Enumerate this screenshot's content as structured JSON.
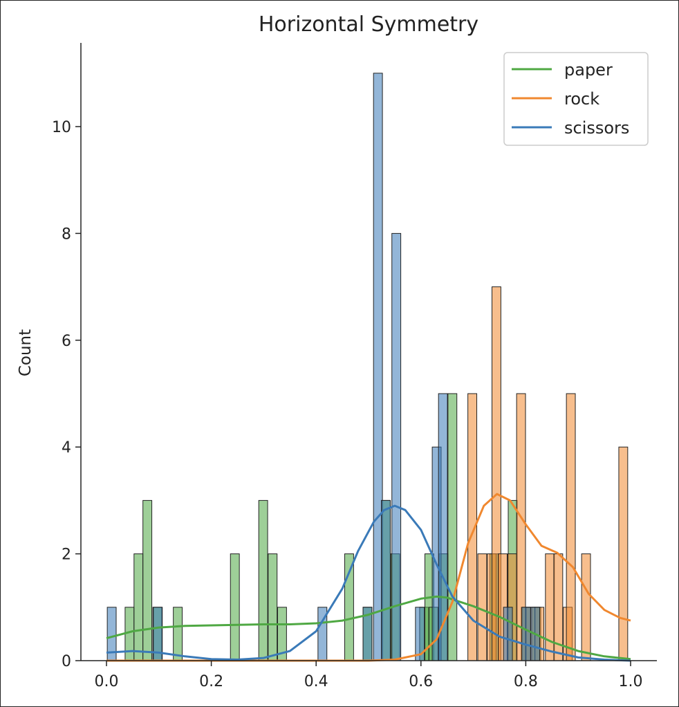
{
  "chart_data": {
    "type": "histogram",
    "title": "Horizontal Symmetry",
    "xlabel": "",
    "ylabel": "Count",
    "xlim": [
      -0.05,
      1.05
    ],
    "ylim": [
      0,
      11.5
    ],
    "xticks": [
      "0.0",
      "0.2",
      "0.4",
      "0.6",
      "0.8",
      "1.0"
    ],
    "yticks": [
      "0",
      "2",
      "4",
      "6",
      "8",
      "10"
    ],
    "bin_width": 0.017,
    "legend": {
      "position": "upper right",
      "entries": [
        "paper",
        "rock",
        "scissors"
      ]
    },
    "series": [
      {
        "name": "paper",
        "color": "#4fa843",
        "bars": [
          {
            "x": 0.044,
            "count": 1
          },
          {
            "x": 0.061,
            "count": 2
          },
          {
            "x": 0.078,
            "count": 3
          },
          {
            "x": 0.097,
            "count": 1
          },
          {
            "x": 0.136,
            "count": 1
          },
          {
            "x": 0.245,
            "count": 2
          },
          {
            "x": 0.299,
            "count": 3
          },
          {
            "x": 0.317,
            "count": 2
          },
          {
            "x": 0.335,
            "count": 1
          },
          {
            "x": 0.463,
            "count": 2
          },
          {
            "x": 0.498,
            "count": 1
          },
          {
            "x": 0.533,
            "count": 3
          },
          {
            "x": 0.551,
            "count": 2
          },
          {
            "x": 0.606,
            "count": 1
          },
          {
            "x": 0.616,
            "count": 2
          },
          {
            "x": 0.624,
            "count": 1
          },
          {
            "x": 0.643,
            "count": 2
          },
          {
            "x": 0.66,
            "count": 5
          },
          {
            "x": 0.74,
            "count": 2
          },
          {
            "x": 0.775,
            "count": 3
          },
          {
            "x": 0.8,
            "count": 1
          },
          {
            "x": 0.82,
            "count": 1
          }
        ]
      },
      {
        "name": "rock",
        "color": "#f0882f",
        "bars": [
          {
            "x": 0.698,
            "count": 5
          },
          {
            "x": 0.717,
            "count": 2
          },
          {
            "x": 0.735,
            "count": 2
          },
          {
            "x": 0.744,
            "count": 7
          },
          {
            "x": 0.756,
            "count": 2
          },
          {
            "x": 0.774,
            "count": 2
          },
          {
            "x": 0.791,
            "count": 5
          },
          {
            "x": 0.809,
            "count": 1
          },
          {
            "x": 0.826,
            "count": 1
          },
          {
            "x": 0.846,
            "count": 2
          },
          {
            "x": 0.862,
            "count": 2
          },
          {
            "x": 0.88,
            "count": 1
          },
          {
            "x": 0.886,
            "count": 5
          },
          {
            "x": 0.915,
            "count": 2
          },
          {
            "x": 0.986,
            "count": 4
          }
        ]
      },
      {
        "name": "scissors",
        "color": "#3a7ab8",
        "bars": [
          {
            "x": 0.01,
            "count": 1
          },
          {
            "x": 0.098,
            "count": 1
          },
          {
            "x": 0.412,
            "count": 1
          },
          {
            "x": 0.498,
            "count": 1
          },
          {
            "x": 0.518,
            "count": 11
          },
          {
            "x": 0.533,
            "count": 3
          },
          {
            "x": 0.553,
            "count": 8
          },
          {
            "x": 0.598,
            "count": 1
          },
          {
            "x": 0.63,
            "count": 4
          },
          {
            "x": 0.642,
            "count": 5
          },
          {
            "x": 0.766,
            "count": 1
          },
          {
            "x": 0.801,
            "count": 1
          },
          {
            "x": 0.818,
            "count": 1
          }
        ]
      }
    ],
    "kde": [
      {
        "name": "paper",
        "color": "#4fa843",
        "points": [
          [
            0.0,
            0.42
          ],
          [
            0.05,
            0.55
          ],
          [
            0.1,
            0.62
          ],
          [
            0.15,
            0.65
          ],
          [
            0.2,
            0.66
          ],
          [
            0.25,
            0.67
          ],
          [
            0.3,
            0.68
          ],
          [
            0.35,
            0.68
          ],
          [
            0.4,
            0.7
          ],
          [
            0.45,
            0.75
          ],
          [
            0.5,
            0.86
          ],
          [
            0.55,
            1.02
          ],
          [
            0.6,
            1.16
          ],
          [
            0.63,
            1.2
          ],
          [
            0.65,
            1.18
          ],
          [
            0.7,
            1.02
          ],
          [
            0.75,
            0.82
          ],
          [
            0.8,
            0.58
          ],
          [
            0.85,
            0.35
          ],
          [
            0.9,
            0.18
          ],
          [
            0.95,
            0.08
          ],
          [
            1.0,
            0.03
          ]
        ]
      },
      {
        "name": "rock",
        "color": "#f0882f",
        "points": [
          [
            0.0,
            0.0
          ],
          [
            0.5,
            0.0
          ],
          [
            0.55,
            0.02
          ],
          [
            0.6,
            0.12
          ],
          [
            0.63,
            0.4
          ],
          [
            0.66,
            1.1
          ],
          [
            0.69,
            2.2
          ],
          [
            0.72,
            2.9
          ],
          [
            0.745,
            3.12
          ],
          [
            0.77,
            3.0
          ],
          [
            0.8,
            2.55
          ],
          [
            0.83,
            2.15
          ],
          [
            0.86,
            2.02
          ],
          [
            0.89,
            1.75
          ],
          [
            0.92,
            1.25
          ],
          [
            0.95,
            0.95
          ],
          [
            0.98,
            0.8
          ],
          [
            1.0,
            0.75
          ]
        ]
      },
      {
        "name": "scissors",
        "color": "#3a7ab8",
        "points": [
          [
            0.0,
            0.15
          ],
          [
            0.05,
            0.18
          ],
          [
            0.1,
            0.15
          ],
          [
            0.15,
            0.08
          ],
          [
            0.2,
            0.03
          ],
          [
            0.25,
            0.02
          ],
          [
            0.3,
            0.05
          ],
          [
            0.35,
            0.18
          ],
          [
            0.4,
            0.55
          ],
          [
            0.45,
            1.35
          ],
          [
            0.48,
            2.05
          ],
          [
            0.51,
            2.6
          ],
          [
            0.53,
            2.82
          ],
          [
            0.55,
            2.9
          ],
          [
            0.57,
            2.82
          ],
          [
            0.6,
            2.45
          ],
          [
            0.63,
            1.8
          ],
          [
            0.66,
            1.2
          ],
          [
            0.7,
            0.75
          ],
          [
            0.75,
            0.45
          ],
          [
            0.8,
            0.3
          ],
          [
            0.85,
            0.17
          ],
          [
            0.9,
            0.06
          ],
          [
            0.95,
            0.02
          ],
          [
            1.0,
            0.0
          ]
        ]
      }
    ]
  }
}
